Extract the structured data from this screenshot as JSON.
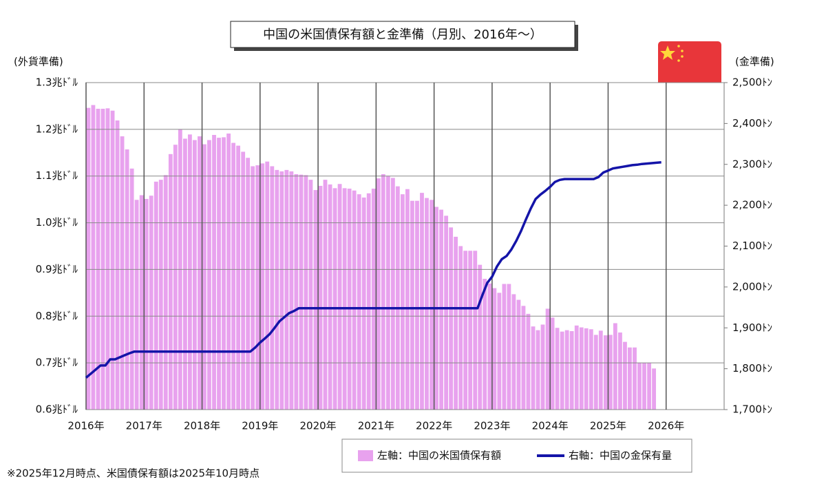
{
  "chart_data": {
    "type": "bar_line",
    "title": "中国の米国債保有額と金準備（月別、2016年～）",
    "y_label": "(外貨準備)",
    "y2_label": "(金準備)",
    "footnote": "※2025年12月時点、米国債保有額は2025年10月時点",
    "xlim": [
      2016,
      2027
    ],
    "xticks": [
      {
        "value": 2016,
        "label": "2016年"
      },
      {
        "value": 2017,
        "label": "2017年"
      },
      {
        "value": 2018,
        "label": "2018年"
      },
      {
        "value": 2019,
        "label": "2019年"
      },
      {
        "value": 2020,
        "label": "2020年"
      },
      {
        "value": 2021,
        "label": "2021年"
      },
      {
        "value": 2022,
        "label": "2022年"
      },
      {
        "value": 2023,
        "label": "2023年"
      },
      {
        "value": 2024,
        "label": "2024年"
      },
      {
        "value": 2025,
        "label": "2025年"
      },
      {
        "value": 2026,
        "label": "2026年"
      }
    ],
    "ylim": [
      0.6,
      1.3
    ],
    "yticks": [
      {
        "value": 0.6,
        "label": "0.6兆ﾄﾞﾙ"
      },
      {
        "value": 0.7,
        "label": "0.7兆ﾄﾞﾙ"
      },
      {
        "value": 0.8,
        "label": "0.8兆ﾄﾞﾙ"
      },
      {
        "value": 0.9,
        "label": "0.9兆ﾄﾞﾙ"
      },
      {
        "value": 1.0,
        "label": "1.0兆ﾄﾞﾙ"
      },
      {
        "value": 1.1,
        "label": "1.1兆ﾄﾞﾙ"
      },
      {
        "value": 1.2,
        "label": "1.2兆ﾄﾞﾙ"
      },
      {
        "value": 1.3,
        "label": "1.3兆ﾄﾞﾙ"
      }
    ],
    "y2lim": [
      1700,
      2500
    ],
    "y2ticks": [
      {
        "value": 1700,
        "label": "1,700ﾄﾝ"
      },
      {
        "value": 1800,
        "label": "1,800ﾄﾝ"
      },
      {
        "value": 1900,
        "label": "1,900ﾄﾝ"
      },
      {
        "value": 2000,
        "label": "2,000ﾄﾝ"
      },
      {
        "value": 2100,
        "label": "2,100ﾄﾝ"
      },
      {
        "value": 2200,
        "label": "2,200ﾄﾝ"
      },
      {
        "value": 2300,
        "label": "2,300ﾄﾝ"
      },
      {
        "value": 2400,
        "label": "2,400ﾄﾝ"
      },
      {
        "value": 2500,
        "label": "2,500ﾄﾝ"
      }
    ],
    "grid": true,
    "series": [
      {
        "name": "左軸：中国の米国債保有額",
        "type": "bar",
        "color": "#e8a2ee",
        "x": [
          2016,
          2016.083,
          2016.167,
          2016.25,
          2016.333,
          2016.417,
          2016.5,
          2016.583,
          2016.667,
          2016.75,
          2016.833,
          2016.917,
          2017,
          2017.083,
          2017.167,
          2017.25,
          2017.333,
          2017.417,
          2017.5,
          2017.583,
          2017.667,
          2017.75,
          2017.833,
          2017.917,
          2018,
          2018.083,
          2018.167,
          2018.25,
          2018.333,
          2018.417,
          2018.5,
          2018.583,
          2018.667,
          2018.75,
          2018.833,
          2018.917,
          2019,
          2019.083,
          2019.167,
          2019.25,
          2019.333,
          2019.417,
          2019.5,
          2019.583,
          2019.667,
          2019.75,
          2019.833,
          2019.917,
          2020,
          2020.083,
          2020.167,
          2020.25,
          2020.333,
          2020.417,
          2020.5,
          2020.583,
          2020.667,
          2020.75,
          2020.833,
          2020.917,
          2021,
          2021.083,
          2021.167,
          2021.25,
          2021.333,
          2021.417,
          2021.5,
          2021.583,
          2021.667,
          2021.75,
          2021.833,
          2021.917,
          2022,
          2022.083,
          2022.167,
          2022.25,
          2022.333,
          2022.417,
          2022.5,
          2022.583,
          2022.667,
          2022.75,
          2022.833,
          2022.917,
          2023,
          2023.083,
          2023.167,
          2023.25,
          2023.333,
          2023.417,
          2023.5,
          2023.583,
          2023.667,
          2023.75,
          2023.833,
          2023.917,
          2024,
          2024.083,
          2024.167,
          2024.25,
          2024.333,
          2024.417,
          2024.5,
          2024.583,
          2024.667,
          2024.75,
          2024.833,
          2024.917,
          2025,
          2025.083,
          2025.167,
          2025.25,
          2025.333,
          2025.417,
          2025.5,
          2025.583,
          2025.667,
          2025.75
        ],
        "values": [
          1.246,
          1.252,
          1.244,
          1.244,
          1.245,
          1.24,
          1.219,
          1.185,
          1.157,
          1.116,
          1.049,
          1.059,
          1.051,
          1.058,
          1.088,
          1.092,
          1.102,
          1.147,
          1.167,
          1.2,
          1.18,
          1.189,
          1.177,
          1.185,
          1.168,
          1.177,
          1.188,
          1.182,
          1.183,
          1.191,
          1.171,
          1.165,
          1.152,
          1.139,
          1.121,
          1.123,
          1.127,
          1.131,
          1.121,
          1.113,
          1.11,
          1.113,
          1.11,
          1.104,
          1.103,
          1.102,
          1.092,
          1.07,
          1.079,
          1.092,
          1.082,
          1.074,
          1.083,
          1.074,
          1.073,
          1.069,
          1.061,
          1.054,
          1.063,
          1.073,
          1.095,
          1.104,
          1.1,
          1.096,
          1.078,
          1.061,
          1.072,
          1.047,
          1.047,
          1.064,
          1.053,
          1.049,
          1.034,
          1.028,
          1.015,
          0.99,
          0.97,
          0.95,
          0.94,
          0.94,
          0.94,
          0.91,
          0.88,
          0.87,
          0.86,
          0.85,
          0.869,
          0.869,
          0.847,
          0.835,
          0.822,
          0.805,
          0.778,
          0.77,
          0.782,
          0.816,
          0.797,
          0.775,
          0.767,
          0.77,
          0.768,
          0.78,
          0.776,
          0.774,
          0.772,
          0.76,
          0.769,
          0.759,
          0.76,
          0.785,
          0.765,
          0.745,
          0.733,
          0.733,
          0.7,
          0.7,
          0.7,
          0.688
        ]
      },
      {
        "name": "右軸：中国の金保有量",
        "type": "line",
        "axis": "y2",
        "color": "#1414a8",
        "x": [
          2016,
          2016.083,
          2016.167,
          2016.25,
          2016.333,
          2016.417,
          2016.5,
          2016.583,
          2016.667,
          2016.75,
          2016.833,
          2016.917,
          2017,
          2017.083,
          2017.167,
          2017.25,
          2017.333,
          2017.417,
          2017.5,
          2017.583,
          2017.667,
          2017.75,
          2017.833,
          2017.917,
          2018,
          2018.083,
          2018.167,
          2018.25,
          2018.333,
          2018.417,
          2018.5,
          2018.583,
          2018.667,
          2018.75,
          2018.833,
          2018.917,
          2019,
          2019.083,
          2019.167,
          2019.25,
          2019.333,
          2019.417,
          2019.5,
          2019.583,
          2019.667,
          2019.75,
          2019.833,
          2019.917,
          2020,
          2020.083,
          2020.167,
          2020.25,
          2020.333,
          2020.417,
          2020.5,
          2020.583,
          2020.667,
          2020.75,
          2020.833,
          2020.917,
          2021,
          2021.083,
          2021.167,
          2021.25,
          2021.333,
          2021.417,
          2021.5,
          2021.583,
          2021.667,
          2021.75,
          2021.833,
          2021.917,
          2022,
          2022.083,
          2022.167,
          2022.25,
          2022.333,
          2022.417,
          2022.5,
          2022.583,
          2022.667,
          2022.75,
          2022.833,
          2022.917,
          2023,
          2023.083,
          2023.167,
          2023.25,
          2023.333,
          2023.417,
          2023.5,
          2023.583,
          2023.667,
          2023.75,
          2023.833,
          2023.917,
          2024,
          2024.083,
          2024.167,
          2024.25,
          2024.333,
          2024.417,
          2024.5,
          2024.583,
          2024.667,
          2024.75,
          2024.833,
          2024.917,
          2025,
          2025.083,
          2025.167,
          2025.25,
          2025.333,
          2025.417,
          2025.5,
          2025.583,
          2025.667,
          2025.75,
          2025.833,
          2025.917
        ],
        "values": [
          1778,
          1788,
          1798,
          1808,
          1808,
          1823,
          1823,
          1828,
          1833,
          1838,
          1842,
          1842,
          1842,
          1842,
          1842,
          1842,
          1842,
          1842,
          1842,
          1842,
          1842,
          1842,
          1842,
          1842,
          1842,
          1842,
          1842,
          1842,
          1842,
          1842,
          1842,
          1842,
          1842,
          1842,
          1842,
          1852,
          1864,
          1874,
          1885,
          1900,
          1916,
          1926,
          1936,
          1941,
          1948,
          1948,
          1948,
          1948,
          1948,
          1948,
          1948,
          1948,
          1948,
          1948,
          1948,
          1948,
          1948,
          1948,
          1948,
          1948,
          1948,
          1948,
          1948,
          1948,
          1948,
          1948,
          1948,
          1948,
          1948,
          1948,
          1948,
          1948,
          1948,
          1948,
          1948,
          1948,
          1948,
          1948,
          1948,
          1948,
          1948,
          1948,
          1980,
          2010,
          2025,
          2050,
          2068,
          2076,
          2092,
          2113,
          2137,
          2165,
          2192,
          2215,
          2226,
          2235,
          2245,
          2257,
          2262,
          2264,
          2264,
          2264,
          2264,
          2264,
          2264,
          2264,
          2269,
          2280,
          2285,
          2290,
          2292,
          2294,
          2296,
          2298,
          2299,
          2301,
          2302,
          2303,
          2304,
          2305
        ]
      }
    ]
  }
}
